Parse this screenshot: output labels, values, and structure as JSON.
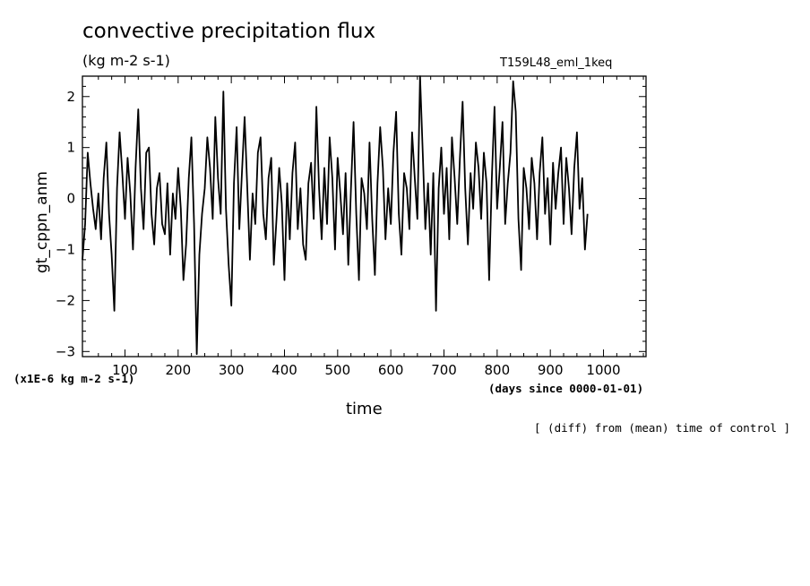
{
  "chart_data": {
    "type": "line",
    "title": "convective precipitation flux",
    "units": "(kg m-2 s-1)",
    "run_label": "T159L48_eml_1keq",
    "ylabel": "gt_cppn_anm",
    "xlabel": "time",
    "x_units": "(days since 0000-01-01)",
    "y_scale_note": "(x1E-6 kg m-2 s-1)",
    "footnote": "[ (diff) from (mean) time of control ]",
    "xlim": [
      20,
      1080
    ],
    "ylim": [
      -3.1,
      2.4
    ],
    "x_ticks": [
      100,
      200,
      300,
      400,
      500,
      600,
      700,
      800,
      900,
      1000
    ],
    "x_tick_labels": [
      "100",
      "200",
      "300",
      "400",
      "500",
      "600",
      "700",
      "800",
      "900",
      "1000"
    ],
    "y_ticks": [
      -3,
      -2,
      -1,
      0,
      1,
      2
    ],
    "y_tick_labels": [
      "−3",
      "−2",
      "−1",
      "0",
      "1",
      "2"
    ],
    "grid": false,
    "line_color": "#000000",
    "series": [
      {
        "x_start": 20,
        "x_step": 5,
        "values": [
          -1.2,
          -0.5,
          0.9,
          0.3,
          -0.2,
          -0.6,
          0.1,
          -0.8,
          0.4,
          1.1,
          -0.3,
          -1.1,
          -2.2,
          0.2,
          1.3,
          0.5,
          -0.4,
          0.8,
          0.1,
          -1.0,
          0.6,
          1.75,
          0.2,
          -0.6,
          0.9,
          1.0,
          -0.3,
          -0.9,
          0.2,
          0.5,
          -0.5,
          -0.7,
          0.3,
          -1.1,
          0.1,
          -0.4,
          0.6,
          -0.2,
          -1.6,
          -0.9,
          0.4,
          1.2,
          -0.5,
          -3.05,
          -1.1,
          -0.3,
          0.2,
          1.2,
          0.6,
          -0.4,
          1.6,
          0.4,
          -0.3,
          2.1,
          -0.2,
          -1.3,
          -2.1,
          0.3,
          1.4,
          -0.6,
          0.5,
          1.6,
          0.2,
          -1.2,
          0.1,
          -0.5,
          0.9,
          1.2,
          -0.3,
          -0.8,
          0.4,
          0.8,
          -1.3,
          -0.4,
          0.6,
          -0.1,
          -1.6,
          0.3,
          -0.8,
          0.5,
          1.1,
          -0.6,
          0.2,
          -0.9,
          -1.2,
          0.3,
          0.7,
          -0.4,
          1.8,
          0.2,
          -0.8,
          0.6,
          -0.5,
          1.2,
          0.4,
          -1.0,
          0.8,
          0.1,
          -0.7,
          0.5,
          -1.3,
          0.2,
          1.5,
          -0.3,
          -1.6,
          0.4,
          0.1,
          -0.6,
          1.1,
          -0.4,
          -1.5,
          0.3,
          1.4,
          0.6,
          -0.8,
          0.2,
          -0.5,
          0.9,
          1.7,
          -0.3,
          -1.1,
          0.5,
          0.2,
          -0.6,
          1.3,
          0.4,
          -0.4,
          2.4,
          0.9,
          -0.6,
          0.3,
          -1.1,
          0.5,
          -2.2,
          0.2,
          1.0,
          -0.3,
          0.6,
          -0.8,
          1.2,
          0.4,
          -0.5,
          0.8,
          1.9,
          0.2,
          -0.9,
          0.5,
          -0.2,
          1.1,
          0.6,
          -0.4,
          0.9,
          0.3,
          -1.6,
          0.4,
          1.8,
          -0.2,
          0.6,
          1.5,
          -0.5,
          0.3,
          0.9,
          2.3,
          1.7,
          -0.4,
          -1.4,
          0.6,
          0.2,
          -0.6,
          0.8,
          0.3,
          -0.8,
          0.5,
          1.2,
          -0.3,
          0.4,
          -0.9,
          0.7,
          -0.2,
          0.5,
          1.0,
          -0.5,
          0.8,
          0.2,
          -0.7,
          0.6,
          1.3,
          -0.2,
          0.4,
          -1.0,
          -0.3
        ]
      }
    ]
  }
}
